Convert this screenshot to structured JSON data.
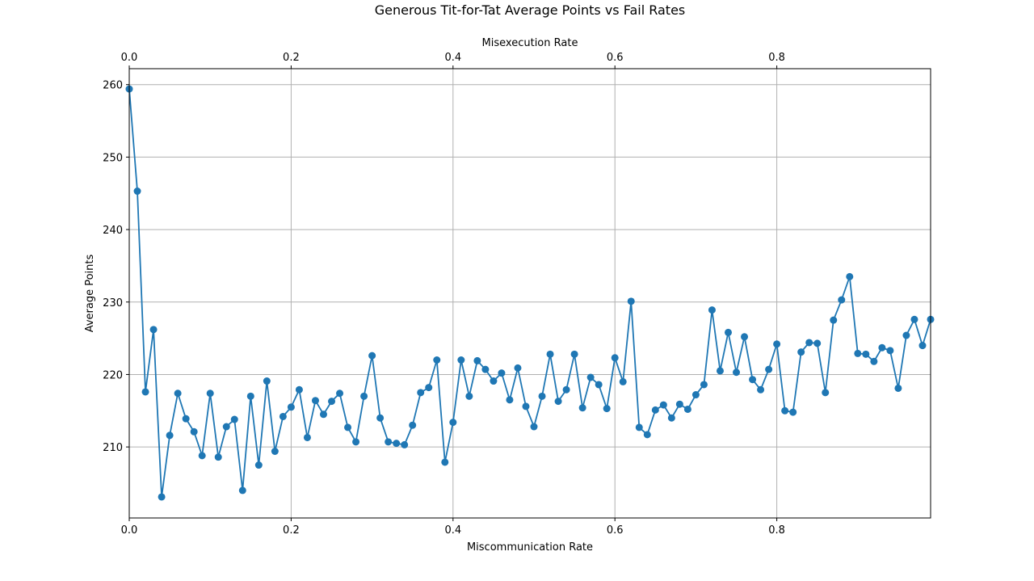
{
  "chart_data": {
    "type": "line",
    "title": "Generous Tit-for-Tat Average Points vs Fail Rates",
    "xlabel": "Miscommunication Rate",
    "top_xlabel": "Misexecution Rate",
    "ylabel": "Average Points",
    "xlim": [
      0,
      0.99
    ],
    "ylim": [
      200.2,
      262.2
    ],
    "xticks": [
      "0.0",
      "0.2",
      "0.4",
      "0.6",
      "0.8"
    ],
    "top_xticks": [
      "0.0",
      "0.2",
      "0.4",
      "0.6",
      "0.8"
    ],
    "yticks": [
      "210",
      "220",
      "230",
      "240",
      "250",
      "260"
    ],
    "grid": true,
    "series": [
      {
        "color": "#1f77b4",
        "x_start": 0.0,
        "x_step": 0.01,
        "values": [
          259.4,
          245.3,
          217.6,
          226.2,
          203.1,
          211.6,
          217.4,
          213.9,
          212.1,
          208.8,
          217.4,
          208.6,
          212.8,
          213.8,
          204.0,
          217.0,
          207.5,
          219.1,
          209.4,
          214.2,
          215.5,
          217.9,
          211.3,
          216.4,
          214.5,
          216.3,
          217.4,
          212.7,
          210.7,
          217.0,
          222.6,
          214.0,
          210.7,
          210.5,
          210.3,
          213.0,
          217.5,
          218.2,
          222.0,
          207.9,
          213.4,
          222.0,
          217.0,
          221.9,
          220.7,
          219.1,
          220.2,
          216.5,
          220.9,
          215.6,
          212.8,
          217.0,
          222.8,
          216.3,
          217.9,
          222.8,
          215.4,
          219.6,
          218.6,
          215.3,
          222.3,
          219.0,
          230.1,
          212.7,
          211.7,
          215.1,
          215.8,
          214.0,
          215.9,
          215.2,
          217.2,
          218.6,
          228.9,
          220.5,
          225.8,
          220.3,
          225.2,
          219.3,
          217.9,
          220.7,
          224.2,
          215.0,
          214.8,
          223.1,
          224.4,
          224.3,
          217.5,
          227.5,
          230.3,
          233.5,
          222.9,
          222.8,
          221.8,
          223.7,
          223.3,
          218.1,
          225.4,
          227.6,
          224.0,
          227.6
        ]
      }
    ]
  }
}
